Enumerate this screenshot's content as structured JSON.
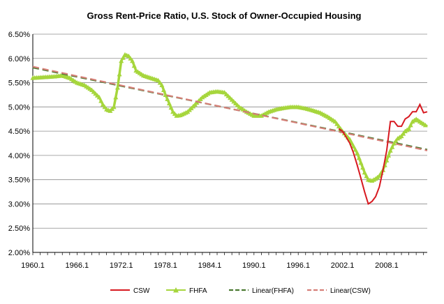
{
  "colors": {
    "csw": "#d71920",
    "fhfa": "#a6d63c",
    "linear_fhfa": "#4b7a32",
    "linear_csw": "#d67f78",
    "grid": "#8c8c8c",
    "axis": "#000000"
  },
  "chart_data": {
    "type": "line",
    "title": "Gross Rent-Price Ratio, U.S. Stock of Owner-Occupied Housing",
    "xlabel": "",
    "ylabel": "",
    "grid": true,
    "legend_position": "bottom",
    "xlim": [
      1960.0,
      2013.5
    ],
    "ylim": [
      0.02,
      0.065
    ],
    "x_tick_labels": [
      "1960.1",
      "1966.1",
      "1972.1",
      "1978.1",
      "1984.1",
      "1990.1",
      "1996.1",
      "2002.1",
      "2008.1"
    ],
    "x_tick_values": [
      1960.0,
      1966.0,
      1972.0,
      1978.0,
      1984.0,
      1990.0,
      1996.0,
      2002.0,
      2008.0
    ],
    "y_tick_labels": [
      "2.00%",
      "2.50%",
      "3.00%",
      "3.50%",
      "4.00%",
      "4.50%",
      "5.00%",
      "5.50%",
      "6.00%",
      "6.50%"
    ],
    "y_tick_values": [
      0.02,
      0.025,
      0.03,
      0.035,
      0.04,
      0.045,
      0.05,
      0.055,
      0.06,
      0.065
    ],
    "series": [
      {
        "name": "CSW",
        "color_key": "csw",
        "style": "solid",
        "x": [
          2001.5,
          2002.0,
          2002.5,
          2003.0,
          2003.5,
          2004.0,
          2004.5,
          2005.0,
          2005.5,
          2006.0,
          2006.5,
          2007.0,
          2007.5,
          2008.0,
          2008.5,
          2009.0,
          2009.5,
          2010.0,
          2010.5,
          2011.0,
          2011.5,
          2012.0,
          2012.5,
          2013.0,
          2013.5
        ],
        "y": [
          0.0455,
          0.045,
          0.0438,
          0.0425,
          0.0405,
          0.038,
          0.0353,
          0.0325,
          0.03,
          0.0305,
          0.0315,
          0.0335,
          0.037,
          0.041,
          0.047,
          0.047,
          0.046,
          0.046,
          0.0475,
          0.048,
          0.049,
          0.049,
          0.0505,
          0.0488,
          0.049
        ]
      },
      {
        "name": "FHFA",
        "color_key": "fhfa",
        "style": "triangle-markers",
        "x": [
          1960.0,
          1961.0,
          1962.0,
          1963.0,
          1964.0,
          1965.0,
          1966.0,
          1967.0,
          1968.0,
          1969.0,
          1969.5,
          1970.0,
          1970.5,
          1971.0,
          1971.5,
          1972.0,
          1972.5,
          1973.0,
          1973.5,
          1974.0,
          1975.0,
          1976.0,
          1977.0,
          1977.5,
          1978.0,
          1979.0,
          1979.5,
          1980.0,
          1981.0,
          1982.0,
          1983.0,
          1984.0,
          1985.0,
          1986.0,
          1987.0,
          1988.0,
          1989.0,
          1990.0,
          1991.0,
          1992.0,
          1993.0,
          1994.0,
          1995.0,
          1996.0,
          1997.0,
          1998.0,
          1999.0,
          2000.0,
          2001.0,
          2002.0,
          2003.0,
          2004.0,
          2004.5,
          2005.0,
          2005.5,
          2006.0,
          2006.5,
          2007.0,
          2007.5,
          2008.0,
          2008.5,
          2009.0,
          2009.5,
          2010.0,
          2010.5,
          2011.0,
          2011.5,
          2012.0,
          2012.5,
          2013.0,
          2013.5
        ],
        "y": [
          0.056,
          0.0561,
          0.0562,
          0.0563,
          0.0565,
          0.056,
          0.055,
          0.0545,
          0.0535,
          0.052,
          0.0505,
          0.0495,
          0.0492,
          0.05,
          0.054,
          0.0595,
          0.0608,
          0.0605,
          0.0595,
          0.0575,
          0.0565,
          0.056,
          0.0555,
          0.0545,
          0.0525,
          0.049,
          0.0482,
          0.0483,
          0.049,
          0.0505,
          0.052,
          0.053,
          0.0532,
          0.053,
          0.0515,
          0.05,
          0.049,
          0.0482,
          0.0482,
          0.049,
          0.0495,
          0.0498,
          0.05,
          0.05,
          0.0497,
          0.0493,
          0.0488,
          0.048,
          0.047,
          0.045,
          0.0433,
          0.0405,
          0.0385,
          0.0365,
          0.035,
          0.0348,
          0.0352,
          0.0358,
          0.037,
          0.039,
          0.041,
          0.0425,
          0.0435,
          0.044,
          0.045,
          0.0455,
          0.047,
          0.0475,
          0.047,
          0.0465,
          0.046
        ]
      },
      {
        "name": "Linear(FHFA)",
        "color_key": "linear_fhfa",
        "style": "dashed",
        "x": [
          1960.0,
          2013.5
        ],
        "y": [
          0.0581,
          0.0412
        ]
      },
      {
        "name": "Linear(CSW)",
        "color_key": "linear_csw",
        "style": "dashed",
        "x": [
          1960.0,
          2013.5
        ],
        "y": [
          0.0583,
          0.041
        ]
      }
    ]
  }
}
